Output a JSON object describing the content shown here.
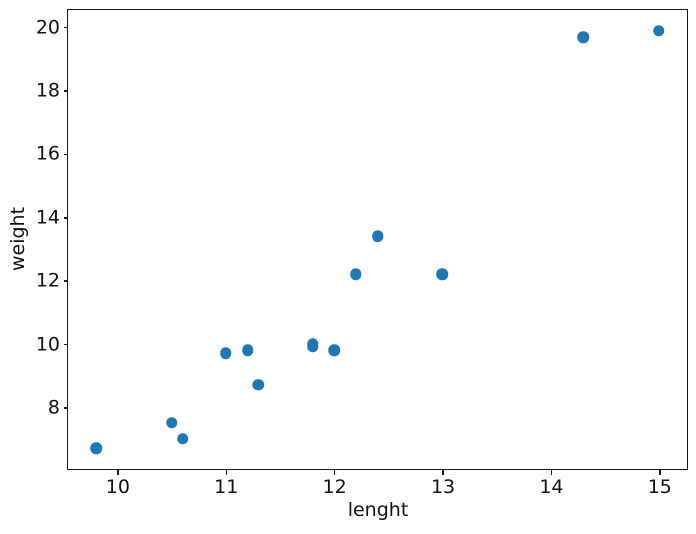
{
  "chart_data": {
    "type": "scatter",
    "x": [
      9.8,
      10.5,
      10.6,
      11.0,
      11.2,
      11.3,
      11.8,
      11.8,
      12.0,
      12.2,
      12.4,
      13.0,
      14.3,
      15.0
    ],
    "y": [
      6.7,
      7.5,
      7.0,
      9.7,
      9.8,
      8.7,
      10.0,
      9.9,
      9.8,
      12.2,
      13.4,
      12.2,
      19.7,
      19.9
    ],
    "xlabel": "lenght",
    "ylabel": "weight",
    "xticks": [
      10,
      11,
      12,
      13,
      14,
      15
    ],
    "yticks": [
      8,
      10,
      12,
      14,
      16,
      18,
      20
    ],
    "xtick_labels": [
      "10",
      "11",
      "12",
      "13",
      "14",
      "15"
    ],
    "ytick_labels": [
      "8",
      "10",
      "12",
      "14",
      "16",
      "18",
      "20"
    ],
    "xlim": [
      9.54,
      15.26
    ],
    "ylim": [
      6.04,
      20.56
    ],
    "title": "",
    "grid": false,
    "legend": null,
    "marker_color": "#1f77b4",
    "marker_diameter_px": 11.5,
    "axis_color": "#1a1a1a",
    "background_color": "#ffffff"
  }
}
